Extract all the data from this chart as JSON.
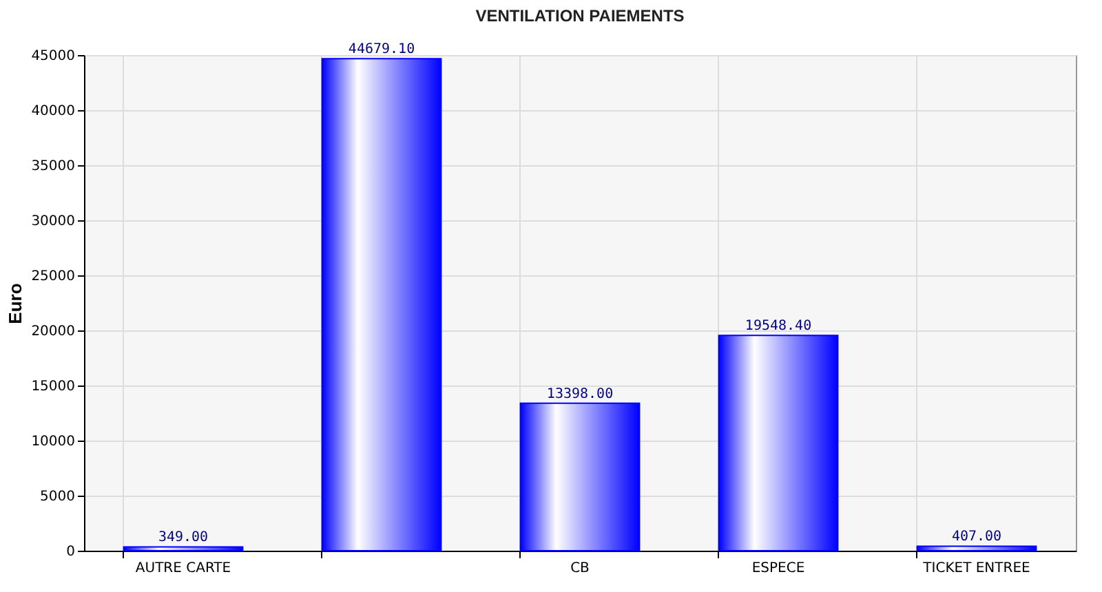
{
  "chart_data": {
    "type": "bar",
    "title": "VENTILATION PAIEMENTS",
    "ylabel": "Euro",
    "categories": [
      "AUTRE CARTE",
      null,
      "CB",
      "ESPECE",
      "TICKET  ENTREE"
    ],
    "values": [
      349.0,
      44679.1,
      13398.0,
      19548.4,
      407.0
    ],
    "value_labels": [
      "349.00",
      "44679.10",
      "13398.00",
      "19548.40",
      "407.00"
    ],
    "color": "#0000ff",
    "ylim": [
      0,
      45000
    ],
    "yticks": [
      0,
      5000,
      10000,
      15000,
      20000,
      25000,
      30000,
      35000,
      40000,
      45000
    ],
    "grid": true
  }
}
